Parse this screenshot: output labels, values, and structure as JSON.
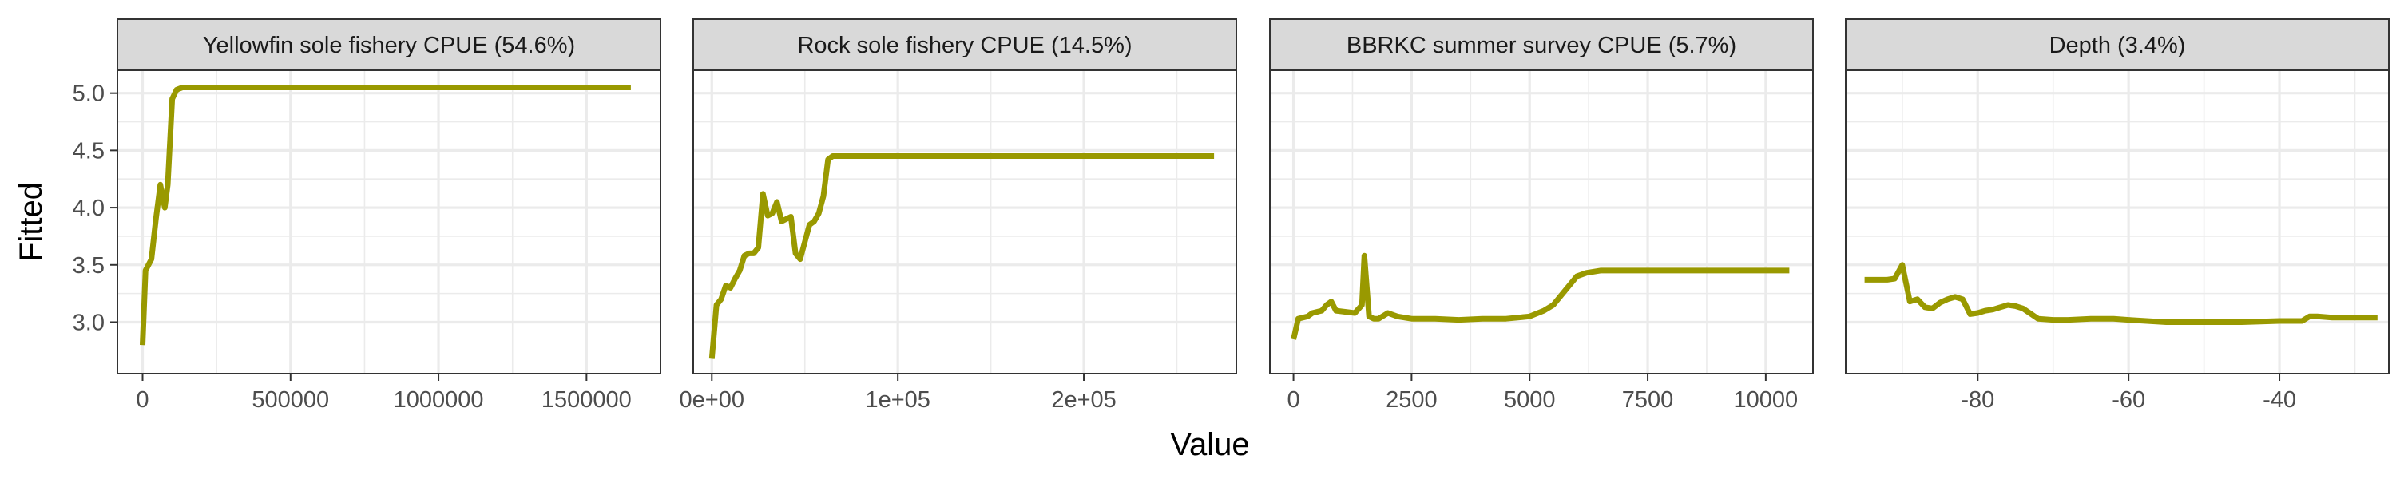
{
  "chart_data": {
    "type": "line",
    "xlabel": "Value",
    "ylabel": "Fitted",
    "ylim": [
      2.55,
      5.2
    ],
    "y_ticks": [
      3.0,
      3.5,
      4.0,
      4.5,
      5.0
    ],
    "y_tick_labels": [
      "3.0",
      "3.5",
      "4.0",
      "4.5",
      "5.0"
    ],
    "grid": true,
    "line_color": "#999900",
    "panel_border_color": "#333333",
    "strip_fill": "#d9d9d9",
    "grid_color": "#ebebeb",
    "panels": [
      {
        "title": "Yellowfin sole fishery CPUE (54.6%)",
        "xlim": [
          -85000,
          1750000
        ],
        "x_ticks": [
          0,
          500000,
          1000000,
          1500000
        ],
        "x_tick_labels": [
          "0",
          "500000",
          "1000000",
          "1500000"
        ],
        "x": [
          0,
          10000,
          30000,
          45000,
          60000,
          75000,
          85000,
          100000,
          115000,
          135000,
          155000,
          300000,
          800000,
          1300000,
          1650000
        ],
        "y": [
          2.8,
          3.45,
          3.55,
          3.9,
          4.2,
          4.0,
          4.2,
          4.95,
          5.03,
          5.05,
          5.05,
          5.05,
          5.05,
          5.05,
          5.05
        ]
      },
      {
        "title": "Rock sole fishery CPUE (14.5%)",
        "xlim": [
          -10000,
          282000
        ],
        "x_ticks": [
          0,
          100000,
          200000
        ],
        "x_tick_labels": [
          "0e+00",
          "1e+05",
          "2e+05"
        ],
        "x": [
          0,
          2500,
          5000,
          7500,
          10000,
          12500,
          15000,
          17500,
          20000,
          22500,
          25000,
          27500,
          30000,
          32500,
          35000,
          37500,
          40000,
          42500,
          45000,
          47500,
          50000,
          52500,
          55000,
          57500,
          60000,
          62500,
          65000,
          67500,
          70000,
          75000,
          100000,
          150000,
          200000,
          270000
        ],
        "y": [
          2.68,
          3.15,
          3.2,
          3.32,
          3.3,
          3.38,
          3.45,
          3.58,
          3.6,
          3.6,
          3.65,
          4.12,
          3.93,
          3.95,
          4.05,
          3.88,
          3.9,
          3.92,
          3.6,
          3.55,
          3.7,
          3.85,
          3.88,
          3.95,
          4.1,
          4.42,
          4.45,
          4.45,
          4.45,
          4.45,
          4.45,
          4.45,
          4.45,
          4.45
        ]
      },
      {
        "title": "BBRKC summer survey CPUE (5.7%)",
        "xlim": [
          -500,
          11000
        ],
        "x_ticks": [
          0,
          2500,
          5000,
          7500,
          10000
        ],
        "x_tick_labels": [
          "0",
          "2500",
          "5000",
          "7500",
          "10000"
        ],
        "x": [
          0,
          100,
          300,
          400,
          600,
          700,
          800,
          900,
          1300,
          1450,
          1500,
          1600,
          1700,
          1800,
          2000,
          2200,
          2500,
          3000,
          3500,
          4000,
          4500,
          5000,
          5300,
          5500,
          5700,
          6000,
          6200,
          6500,
          7000,
          8000,
          9000,
          10500
        ],
        "y": [
          2.85,
          3.03,
          3.05,
          3.08,
          3.1,
          3.15,
          3.18,
          3.1,
          3.08,
          3.15,
          3.58,
          3.05,
          3.03,
          3.03,
          3.08,
          3.05,
          3.03,
          3.03,
          3.02,
          3.03,
          3.03,
          3.05,
          3.1,
          3.15,
          3.25,
          3.4,
          3.43,
          3.45,
          3.45,
          3.45,
          3.45,
          3.45
        ]
      },
      {
        "title": "Depth (3.4%)",
        "xlim": [
          -97.5,
          -25.5
        ],
        "x_ticks": [
          -80,
          -60,
          -40
        ],
        "x_tick_labels": [
          "-80",
          "-60",
          "-40"
        ],
        "x": [
          -95,
          -92,
          -91,
          -90,
          -89,
          -88,
          -87,
          -86,
          -85,
          -84,
          -83,
          -82,
          -81,
          -80,
          -79,
          -78,
          -77,
          -76,
          -75,
          -74,
          -72,
          -70,
          -68,
          -65,
          -62,
          -60,
          -55,
          -50,
          -45,
          -40,
          -37,
          -36,
          -35,
          -33,
          -30,
          -27
        ],
        "y": [
          3.37,
          3.37,
          3.38,
          3.5,
          3.18,
          3.2,
          3.13,
          3.12,
          3.17,
          3.2,
          3.22,
          3.2,
          3.07,
          3.08,
          3.1,
          3.11,
          3.13,
          3.15,
          3.14,
          3.12,
          3.03,
          3.02,
          3.02,
          3.03,
          3.03,
          3.02,
          3.0,
          3.0,
          3.0,
          3.01,
          3.01,
          3.05,
          3.05,
          3.04,
          3.04,
          3.04
        ]
      }
    ]
  }
}
